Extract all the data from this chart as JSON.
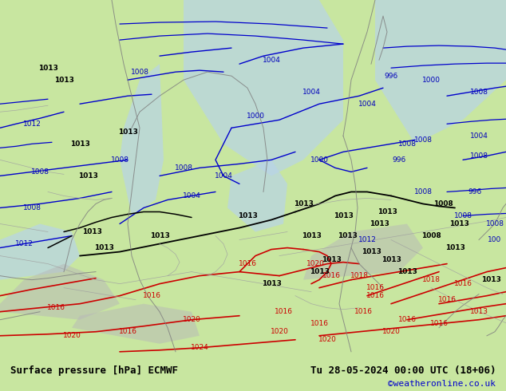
{
  "title_left": "Surface pressure [hPa] ECMWF",
  "title_right": "Tu 28-05-2024 00:00 UTC (18+06)",
  "credit": "©weatheronline.co.uk",
  "bg_color": "#c8e6a0",
  "sea_color": "#b8d4e8",
  "highland_color": "#b8b8b8",
  "fig_width": 6.34,
  "fig_height": 4.9,
  "dpi": 100,
  "bottom_bar_color": "#ffffff",
  "title_fontsize": 9,
  "credit_color": "#0000cc",
  "credit_fontsize": 8
}
